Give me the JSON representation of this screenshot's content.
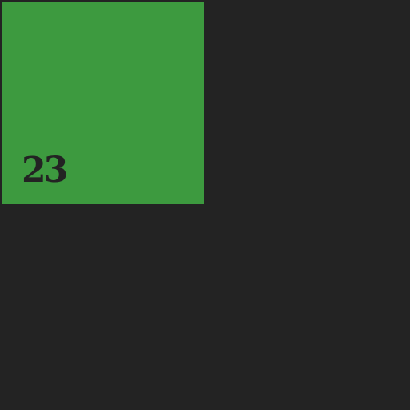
{
  "colors": {
    "background": "#232323",
    "tile": "#3d9a3f",
    "number_text": "#232323"
  },
  "tile": {
    "number": "23"
  }
}
